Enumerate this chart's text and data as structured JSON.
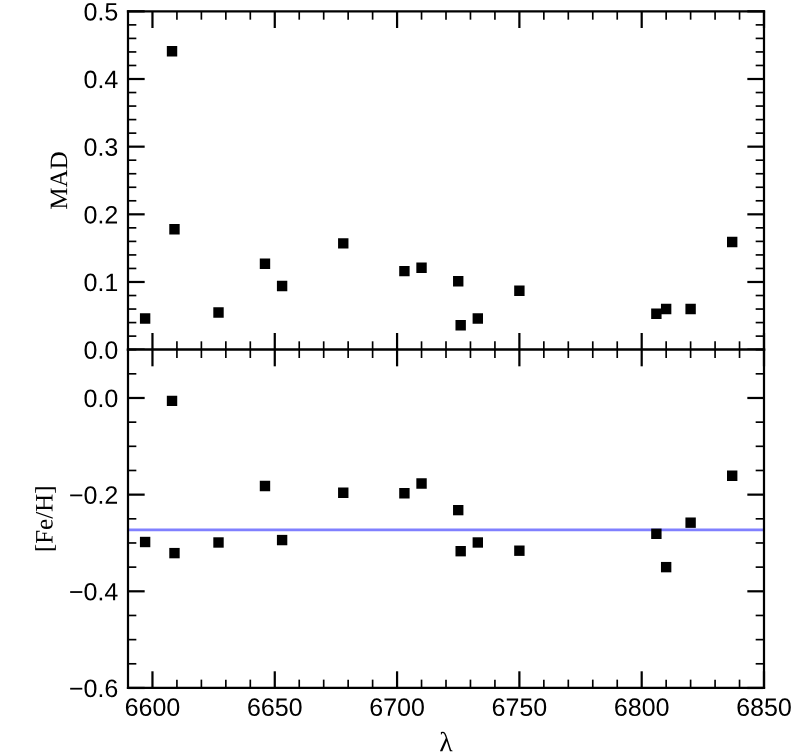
{
  "chart_data": [
    {
      "type": "scatter",
      "ylabel": "MAD",
      "marker": "square",
      "tick_labels": "y",
      "xlim": [
        6590,
        6850
      ],
      "ylim": [
        0,
        0.5
      ],
      "yticks": [
        {
          "value": 0,
          "label": "0.0"
        },
        0.1,
        0.2,
        0.3,
        0.4,
        0.5
      ],
      "xticks": [
        {
          "value": 6600,
          "label": null
        },
        {
          "value": 6650,
          "label": null
        },
        {
          "value": 6700,
          "label": null
        },
        {
          "value": 6750,
          "label": null
        },
        {
          "value": 6800,
          "label": null
        },
        {
          "value": 6850,
          "label": null
        }
      ],
      "x": [
        6597,
        6608,
        6609,
        6627,
        6646,
        6653,
        6678,
        6703,
        6710,
        6725,
        6726,
        6733,
        6750,
        6806,
        6810,
        6820,
        6837
      ],
      "series": [
        {
          "color": "#000000",
          "values": [
            0.046,
            0.441,
            0.178,
            0.055,
            0.127,
            0.094,
            0.157,
            0.116,
            0.121,
            0.101,
            0.036,
            0.046,
            0.087,
            0.053,
            0.06,
            0.06,
            0.159
          ]
        }
      ]
    },
    {
      "type": "scatter",
      "xlabel": "λ",
      "ylabel": "[Fe/H]",
      "marker": "square",
      "xlim": [
        6590,
        6850
      ],
      "ylim": [
        -0.6,
        0.1
      ],
      "yticks": [
        {
          "value": -0.6,
          "label": "−0.6"
        },
        {
          "value": -0.4,
          "label": "−0.4"
        },
        {
          "value": -0.2,
          "label": "−0.2"
        },
        {
          "value": 0,
          "label": "0.0"
        }
      ],
      "xticks": [
        6600,
        6650,
        6700,
        6750,
        6800,
        6850
      ],
      "x": [
        6597,
        6608,
        6609,
        6627,
        6646,
        6653,
        6678,
        6703,
        6710,
        6725,
        6726,
        6733,
        6750,
        6806,
        6810,
        6820,
        6837
      ],
      "series": [
        {
          "color": "#000000",
          "values": [
            -0.298,
            -0.006,
            -0.321,
            -0.299,
            -0.182,
            -0.294,
            -0.196,
            -0.197,
            -0.177,
            -0.232,
            -0.317,
            -0.299,
            -0.316,
            -0.281,
            -0.35,
            -0.258,
            -0.161
          ]
        }
      ],
      "ref_lines": [
        {
          "axis": "y",
          "value": -0.273,
          "color": "#8080ff"
        }
      ]
    }
  ]
}
